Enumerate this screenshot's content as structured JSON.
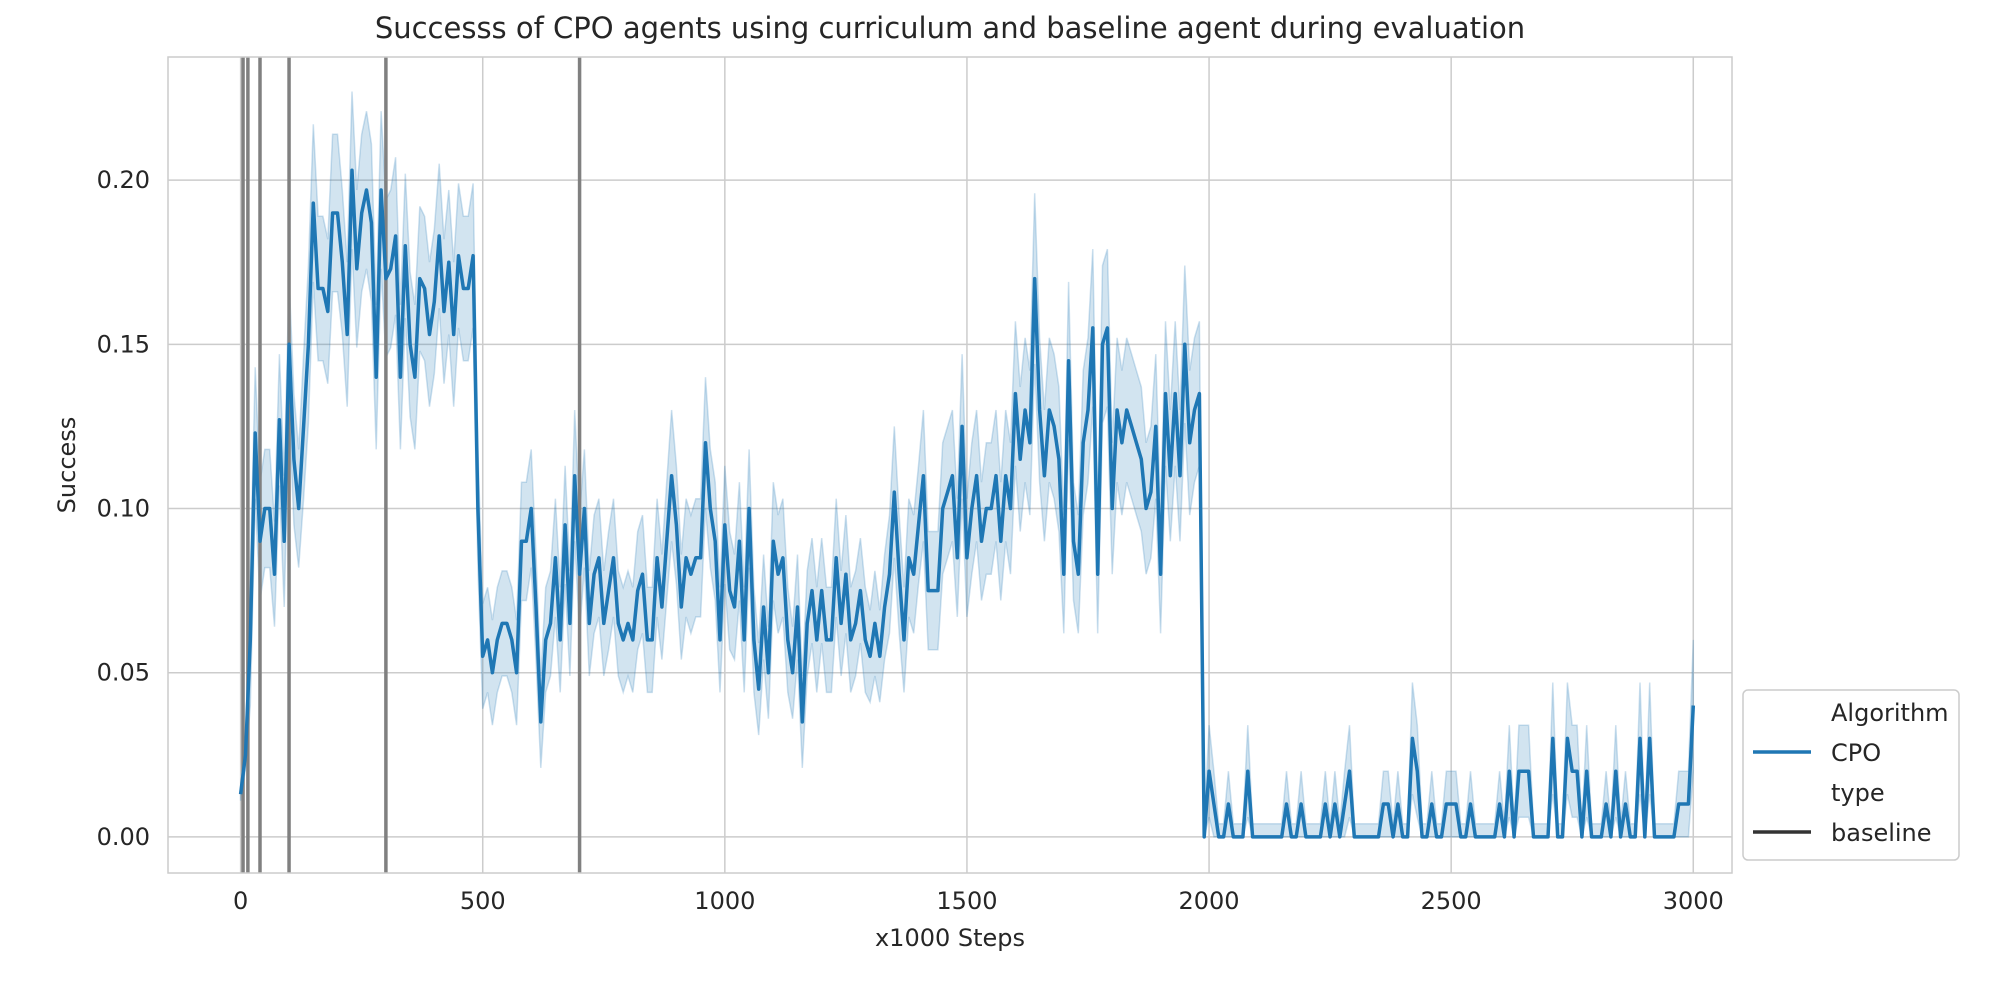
{
  "chart_data": {
    "type": "line",
    "title": "Successs of CPO agents using curriculum and baseline agent during evaluation",
    "xlabel": "x1000 Steps",
    "ylabel": "Success",
    "xlim": [
      -150,
      3080
    ],
    "ylim": [
      -0.011,
      0.2375
    ],
    "xticks": [
      0,
      500,
      1000,
      1500,
      2000,
      2500,
      3000
    ],
    "xtick_labels": [
      "0",
      "500",
      "1000",
      "1500",
      "2000",
      "2500",
      "3000"
    ],
    "yticks": [
      0.0,
      0.05,
      0.1,
      0.15,
      0.2
    ],
    "ytick_labels": [
      "0.00",
      "0.05",
      "0.10",
      "0.15",
      "0.20"
    ],
    "grid": true,
    "vertical_lines": [
      5,
      15,
      40,
      100,
      300,
      700
    ],
    "vertical_line_color": "#808080",
    "series": [
      {
        "name": "CPO",
        "color": "#1f77b4",
        "band_color": "#1f77b4",
        "x": [
          0,
          10,
          20,
          30,
          40,
          50,
          60,
          70,
          80,
          90,
          100,
          110,
          120,
          130,
          140,
          150,
          160,
          170,
          180,
          190,
          200,
          210,
          220,
          230,
          240,
          250,
          260,
          270,
          280,
          290,
          300,
          310,
          320,
          330,
          340,
          350,
          360,
          370,
          380,
          390,
          400,
          410,
          420,
          430,
          440,
          450,
          460,
          470,
          480,
          490,
          500,
          510,
          520,
          530,
          540,
          550,
          560,
          570,
          580,
          590,
          600,
          610,
          620,
          630,
          640,
          650,
          660,
          670,
          680,
          690,
          700,
          710,
          720,
          730,
          740,
          750,
          760,
          770,
          780,
          790,
          800,
          810,
          820,
          830,
          840,
          850,
          860,
          870,
          880,
          890,
          900,
          910,
          920,
          930,
          940,
          950,
          960,
          970,
          980,
          990,
          1000,
          1010,
          1020,
          1030,
          1040,
          1050,
          1060,
          1070,
          1080,
          1090,
          1100,
          1110,
          1120,
          1130,
          1140,
          1150,
          1160,
          1170,
          1180,
          1190,
          1200,
          1210,
          1220,
          1230,
          1240,
          1250,
          1260,
          1270,
          1280,
          1290,
          1300,
          1310,
          1320,
          1330,
          1340,
          1350,
          1360,
          1370,
          1380,
          1390,
          1400,
          1410,
          1420,
          1430,
          1440,
          1450,
          1460,
          1470,
          1480,
          1490,
          1500,
          1510,
          1520,
          1530,
          1540,
          1550,
          1560,
          1570,
          1580,
          1590,
          1600,
          1610,
          1620,
          1630,
          1640,
          1650,
          1660,
          1670,
          1680,
          1690,
          1700,
          1710,
          1720,
          1730,
          1740,
          1750,
          1760,
          1770,
          1780,
          1790,
          1800,
          1810,
          1820,
          1830,
          1840,
          1850,
          1860,
          1870,
          1880,
          1890,
          1900,
          1910,
          1920,
          1930,
          1940,
          1950,
          1960,
          1970,
          1980,
          1990,
          2000,
          2010,
          2020,
          2030,
          2040,
          2050,
          2060,
          2070,
          2080,
          2090,
          2100,
          2110,
          2120,
          2130,
          2140,
          2150,
          2160,
          2170,
          2180,
          2190,
          2200,
          2210,
          2220,
          2230,
          2240,
          2250,
          2260,
          2270,
          2280,
          2290,
          2300,
          2310,
          2320,
          2330,
          2340,
          2350,
          2360,
          2370,
          2380,
          2390,
          2400,
          2410,
          2420,
          2430,
          2440,
          2450,
          2460,
          2470,
          2480,
          2490,
          2500,
          2510,
          2520,
          2530,
          2540,
          2550,
          2560,
          2570,
          2580,
          2590,
          2600,
          2610,
          2620,
          2630,
          2640,
          2650,
          2660,
          2670,
          2680,
          2690,
          2700,
          2710,
          2720,
          2730,
          2740,
          2750,
          2760,
          2770,
          2780,
          2790,
          2800,
          2810,
          2820,
          2830,
          2840,
          2850,
          2860,
          2870,
          2880,
          2890,
          2900,
          2910,
          2920,
          2930,
          2940,
          2950,
          2960,
          2970,
          2980,
          2990,
          3000
        ],
        "y": [
          0.013,
          0.025,
          0.06,
          0.123,
          0.09,
          0.1,
          0.1,
          0.08,
          0.127,
          0.09,
          0.15,
          0.115,
          0.1,
          0.125,
          0.15,
          0.193,
          0.167,
          0.167,
          0.16,
          0.19,
          0.19,
          0.175,
          0.153,
          0.203,
          0.173,
          0.19,
          0.197,
          0.187,
          0.14,
          0.197,
          0.17,
          0.173,
          0.183,
          0.14,
          0.18,
          0.15,
          0.14,
          0.17,
          0.167,
          0.153,
          0.163,
          0.183,
          0.16,
          0.175,
          0.153,
          0.177,
          0.167,
          0.167,
          0.177,
          0.1,
          0.055,
          0.06,
          0.05,
          0.06,
          0.065,
          0.065,
          0.06,
          0.05,
          0.09,
          0.09,
          0.1,
          0.07,
          0.035,
          0.06,
          0.065,
          0.085,
          0.06,
          0.095,
          0.065,
          0.11,
          0.08,
          0.1,
          0.065,
          0.08,
          0.085,
          0.065,
          0.075,
          0.085,
          0.065,
          0.06,
          0.065,
          0.06,
          0.075,
          0.08,
          0.06,
          0.06,
          0.085,
          0.07,
          0.09,
          0.11,
          0.095,
          0.07,
          0.085,
          0.08,
          0.085,
          0.085,
          0.12,
          0.1,
          0.09,
          0.06,
          0.095,
          0.075,
          0.07,
          0.09,
          0.06,
          0.1,
          0.06,
          0.045,
          0.07,
          0.05,
          0.09,
          0.08,
          0.085,
          0.06,
          0.05,
          0.07,
          0.035,
          0.065,
          0.075,
          0.06,
          0.075,
          0.06,
          0.06,
          0.085,
          0.065,
          0.08,
          0.06,
          0.065,
          0.075,
          0.06,
          0.055,
          0.065,
          0.055,
          0.07,
          0.08,
          0.105,
          0.08,
          0.06,
          0.085,
          0.08,
          0.095,
          0.11,
          0.075,
          0.075,
          0.075,
          0.1,
          0.105,
          0.11,
          0.085,
          0.125,
          0.085,
          0.1,
          0.11,
          0.09,
          0.1,
          0.1,
          0.11,
          0.09,
          0.11,
          0.1,
          0.135,
          0.115,
          0.13,
          0.12,
          0.17,
          0.13,
          0.11,
          0.13,
          0.125,
          0.115,
          0.08,
          0.145,
          0.09,
          0.08,
          0.12,
          0.13,
          0.155,
          0.08,
          0.15,
          0.155,
          0.1,
          0.13,
          0.12,
          0.13,
          0.125,
          0.12,
          0.115,
          0.1,
          0.105,
          0.125,
          0.08,
          0.135,
          0.11,
          0.135,
          0.11,
          0.15,
          0.12,
          0.13,
          0.135,
          0.0,
          0.02,
          0.01,
          0.0,
          0.0,
          0.01,
          0.0,
          0.0,
          0.0,
          0.02,
          0.0,
          0.0,
          0.0,
          0.0,
          0.0,
          0.0,
          0.0,
          0.01,
          0.0,
          0.0,
          0.01,
          0.0,
          0.0,
          0.0,
          0.0,
          0.01,
          0.0,
          0.01,
          0.0,
          0.01,
          0.02,
          0.0,
          0.0,
          0.0,
          0.0,
          0.0,
          0.0,
          0.01,
          0.01,
          0.0,
          0.01,
          0.0,
          0.0,
          0.03,
          0.02,
          0.0,
          0.0,
          0.01,
          0.0,
          0.0,
          0.01,
          0.01,
          0.01,
          0.0,
          0.0,
          0.01,
          0.0,
          0.0,
          0.0,
          0.0,
          0.0,
          0.01,
          0.0,
          0.02,
          0.0,
          0.02,
          0.02,
          0.02,
          0.0,
          0.0,
          0.0,
          0.0,
          0.03,
          0.0,
          0.0,
          0.03,
          0.02,
          0.02,
          0.0,
          0.02,
          0.0,
          0.0,
          0.0,
          0.01,
          0.0,
          0.02,
          0.0,
          0.01,
          0.0,
          0.0,
          0.03,
          0.0,
          0.03,
          0.0,
          0.0,
          0.0,
          0.0,
          0.0,
          0.01,
          0.01,
          0.01,
          0.04
        ],
        "band": [
          0.002,
          0.004,
          0.02,
          0.02,
          0.018,
          0.018,
          0.018,
          0.016,
          0.02,
          0.02,
          0.02,
          0.02,
          0.018,
          0.022,
          0.024,
          0.024,
          0.022,
          0.022,
          0.022,
          0.024,
          0.024,
          0.022,
          0.022,
          0.024,
          0.024,
          0.024,
          0.024,
          0.024,
          0.022,
          0.024,
          0.024,
          0.024,
          0.024,
          0.022,
          0.022,
          0.022,
          0.022,
          0.022,
          0.022,
          0.022,
          0.022,
          0.022,
          0.022,
          0.022,
          0.022,
          0.022,
          0.022,
          0.022,
          0.022,
          0.018,
          0.016,
          0.016,
          0.016,
          0.016,
          0.016,
          0.016,
          0.016,
          0.016,
          0.018,
          0.018,
          0.018,
          0.016,
          0.014,
          0.016,
          0.016,
          0.018,
          0.016,
          0.018,
          0.016,
          0.02,
          0.018,
          0.018,
          0.016,
          0.018,
          0.018,
          0.016,
          0.018,
          0.018,
          0.016,
          0.016,
          0.016,
          0.016,
          0.018,
          0.018,
          0.016,
          0.016,
          0.018,
          0.016,
          0.018,
          0.02,
          0.018,
          0.016,
          0.018,
          0.018,
          0.018,
          0.018,
          0.02,
          0.018,
          0.018,
          0.016,
          0.018,
          0.018,
          0.016,
          0.018,
          0.016,
          0.018,
          0.016,
          0.014,
          0.016,
          0.014,
          0.018,
          0.018,
          0.018,
          0.016,
          0.014,
          0.016,
          0.014,
          0.016,
          0.016,
          0.016,
          0.016,
          0.016,
          0.016,
          0.018,
          0.016,
          0.018,
          0.016,
          0.016,
          0.016,
          0.016,
          0.014,
          0.016,
          0.014,
          0.016,
          0.018,
          0.02,
          0.018,
          0.016,
          0.018,
          0.018,
          0.018,
          0.02,
          0.018,
          0.018,
          0.018,
          0.02,
          0.02,
          0.02,
          0.018,
          0.022,
          0.018,
          0.02,
          0.02,
          0.018,
          0.02,
          0.02,
          0.02,
          0.018,
          0.02,
          0.02,
          0.022,
          0.022,
          0.022,
          0.022,
          0.026,
          0.022,
          0.02,
          0.022,
          0.022,
          0.022,
          0.018,
          0.024,
          0.018,
          0.018,
          0.022,
          0.022,
          0.024,
          0.018,
          0.024,
          0.024,
          0.02,
          0.022,
          0.022,
          0.022,
          0.022,
          0.022,
          0.022,
          0.02,
          0.02,
          0.022,
          0.018,
          0.022,
          0.02,
          0.022,
          0.02,
          0.024,
          0.022,
          0.022,
          0.022,
          0.004,
          0.014,
          0.01,
          0.004,
          0.004,
          0.01,
          0.004,
          0.004,
          0.004,
          0.014,
          0.004,
          0.004,
          0.004,
          0.004,
          0.004,
          0.004,
          0.004,
          0.01,
          0.004,
          0.004,
          0.01,
          0.004,
          0.004,
          0.004,
          0.004,
          0.01,
          0.004,
          0.01,
          0.004,
          0.01,
          0.014,
          0.004,
          0.004,
          0.004,
          0.004,
          0.004,
          0.004,
          0.01,
          0.01,
          0.004,
          0.01,
          0.004,
          0.004,
          0.017,
          0.014,
          0.004,
          0.004,
          0.01,
          0.004,
          0.004,
          0.01,
          0.01,
          0.01,
          0.004,
          0.004,
          0.01,
          0.004,
          0.004,
          0.004,
          0.004,
          0.004,
          0.01,
          0.004,
          0.014,
          0.004,
          0.014,
          0.014,
          0.014,
          0.004,
          0.004,
          0.004,
          0.004,
          0.017,
          0.004,
          0.004,
          0.017,
          0.014,
          0.014,
          0.004,
          0.014,
          0.004,
          0.004,
          0.004,
          0.01,
          0.004,
          0.014,
          0.004,
          0.01,
          0.004,
          0.004,
          0.017,
          0.004,
          0.017,
          0.004,
          0.004,
          0.004,
          0.004,
          0.004,
          0.01,
          0.01,
          0.01,
          0.02
        ]
      }
    ],
    "legend": {
      "placement": "outside-right-bottom",
      "entries": [
        {
          "label": "Algorithm",
          "kind": "header"
        },
        {
          "label": "CPO",
          "kind": "line",
          "color": "#1f77b4"
        },
        {
          "label": "type",
          "kind": "header"
        },
        {
          "label": "baseline",
          "kind": "line",
          "color": "#333333"
        }
      ]
    }
  }
}
